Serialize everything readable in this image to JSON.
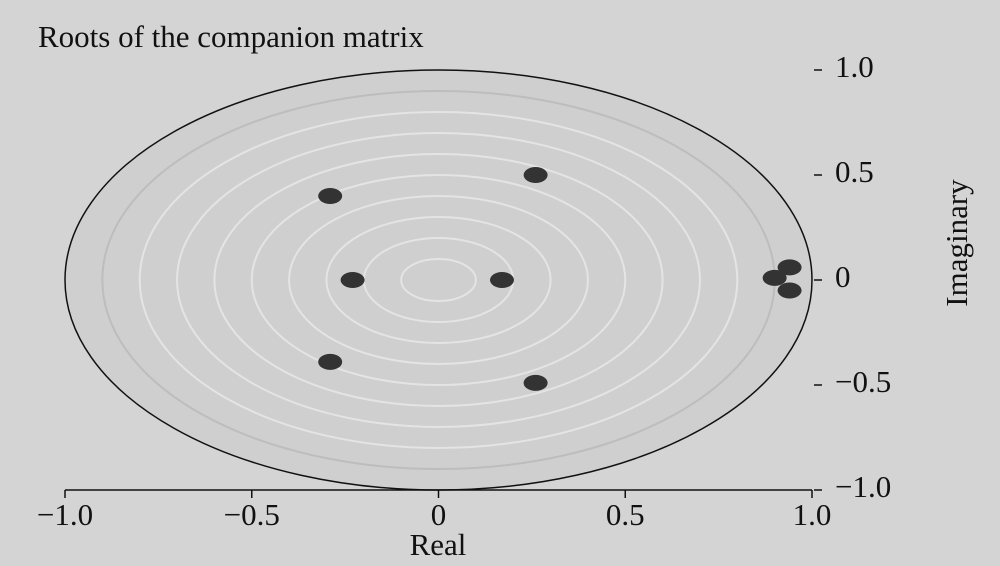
{
  "chart_data": {
    "type": "scatter",
    "title": "Roots of the companion matrix",
    "x_label": "Real",
    "y_label": "Imaginary",
    "series": [
      {
        "name": "roots",
        "color": "#333333",
        "x": [
          -0.29,
          -0.23,
          0.17,
          0.26,
          0.26,
          -0.29,
          0.9,
          0.94,
          0.94
        ],
        "values": [
          0.4,
          0,
          0,
          0.5,
          -0.49,
          -0.39,
          0.01,
          0.06,
          -0.05
        ]
      }
    ],
    "xlim": [
      -1,
      1
    ],
    "ylim": [
      -1,
      1
    ],
    "xticks": [
      {
        "value": -1,
        "label": "−1.0"
      },
      {
        "value": -0.5,
        "label": "−0.5"
      },
      0,
      0.5,
      {
        "value": 1,
        "label": "1.0"
      }
    ],
    "yticks": [
      {
        "value": -1,
        "label": "−1.0"
      },
      {
        "value": -0.5,
        "label": "−0.5"
      },
      0,
      0.5,
      {
        "value": 1,
        "label": "1.0"
      }
    ]
  }
}
